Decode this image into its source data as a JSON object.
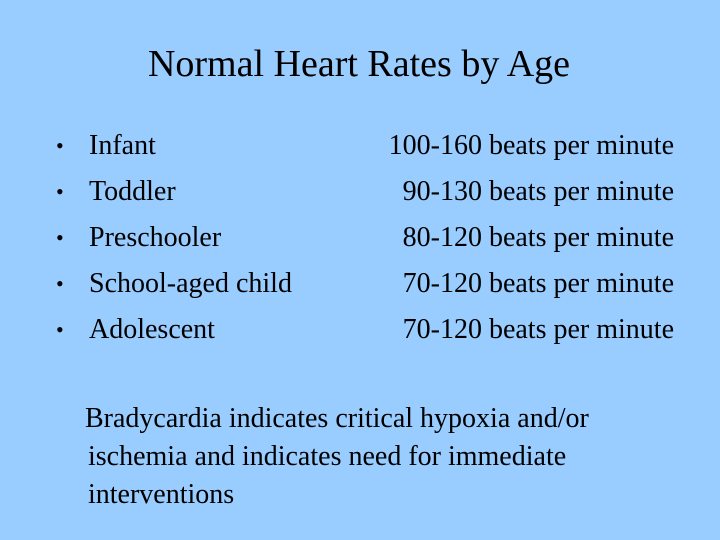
{
  "slide": {
    "title": "Normal Heart Rates by Age",
    "bullet_glyph": "•",
    "rows": [
      {
        "age": "Infant",
        "rate": "100-160 beats per minute"
      },
      {
        "age": "Toddler",
        "rate": "90-130 beats per minute"
      },
      {
        "age": "Preschooler",
        "rate": "80-120 beats per minute"
      },
      {
        "age": "School-aged child",
        "rate": "70-120 beats per minute"
      },
      {
        "age": "Adolescent",
        "rate": "70-120 beats per minute"
      }
    ],
    "note_lines": [
      "Bradycardia indicates critical hypoxia and/or",
      "ischemia and indicates need for immediate",
      "interventions"
    ]
  }
}
